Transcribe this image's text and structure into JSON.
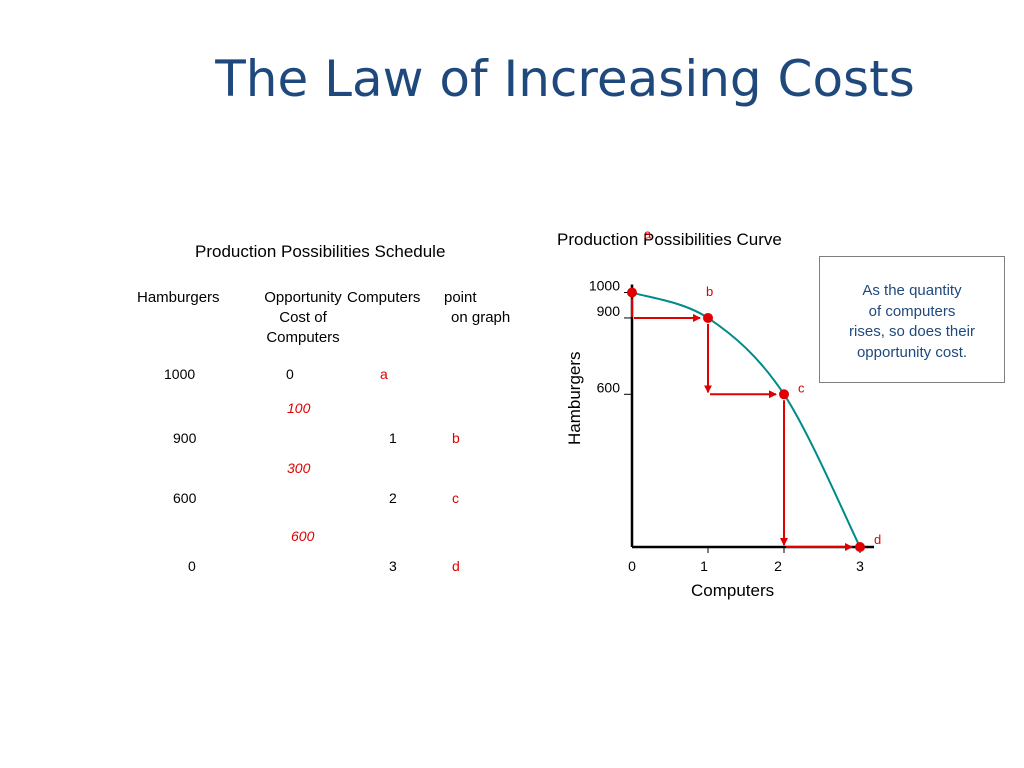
{
  "title": "The Law of Increasing Costs",
  "schedule": {
    "title": "Production Possibilities Schedule",
    "headers": {
      "hamburgers": "Hamburgers",
      "opportunity_cost": [
        "Opportunity",
        "Cost of",
        "Computers"
      ],
      "computers": "Computers",
      "point": [
        "point",
        "on graph"
      ]
    },
    "rows": [
      {
        "hamburgers": "1000",
        "cost": "0",
        "computers": "",
        "point": "a"
      },
      {
        "hamburgers": "900",
        "cost": "",
        "computers": "1",
        "point": "b"
      },
      {
        "hamburgers": "600",
        "cost": "",
        "computers": "2",
        "point": "c"
      },
      {
        "hamburgers": "0",
        "cost": "",
        "computers": "3",
        "point": "d"
      }
    ],
    "opportunity_costs": [
      "100",
      "300",
      "600"
    ]
  },
  "note": [
    "As the quantity",
    "of computers",
    "rises, so does their",
    "opportunity cost."
  ],
  "colors": {
    "title": "#1F497D",
    "curve": "#008B8B",
    "points": "#E00000",
    "note_text": "#1F497D"
  },
  "chart_data": {
    "type": "line",
    "title": "Production Possibilities Curve",
    "xlabel": "Computers",
    "ylabel": "Hamburgers",
    "x_ticks": [
      "0",
      "1",
      "2",
      "3"
    ],
    "y_ticks": [
      "1000",
      "900",
      "600"
    ],
    "xlim": [
      0,
      3
    ],
    "ylim": [
      0,
      1000
    ],
    "points": [
      {
        "label": "a",
        "x": 0,
        "y": 1000
      },
      {
        "label": "b",
        "x": 1,
        "y": 900
      },
      {
        "label": "c",
        "x": 2,
        "y": 600
      },
      {
        "label": "d",
        "x": 3,
        "y": 0
      }
    ],
    "step_arrows": true,
    "grid": false,
    "legend": "none"
  }
}
